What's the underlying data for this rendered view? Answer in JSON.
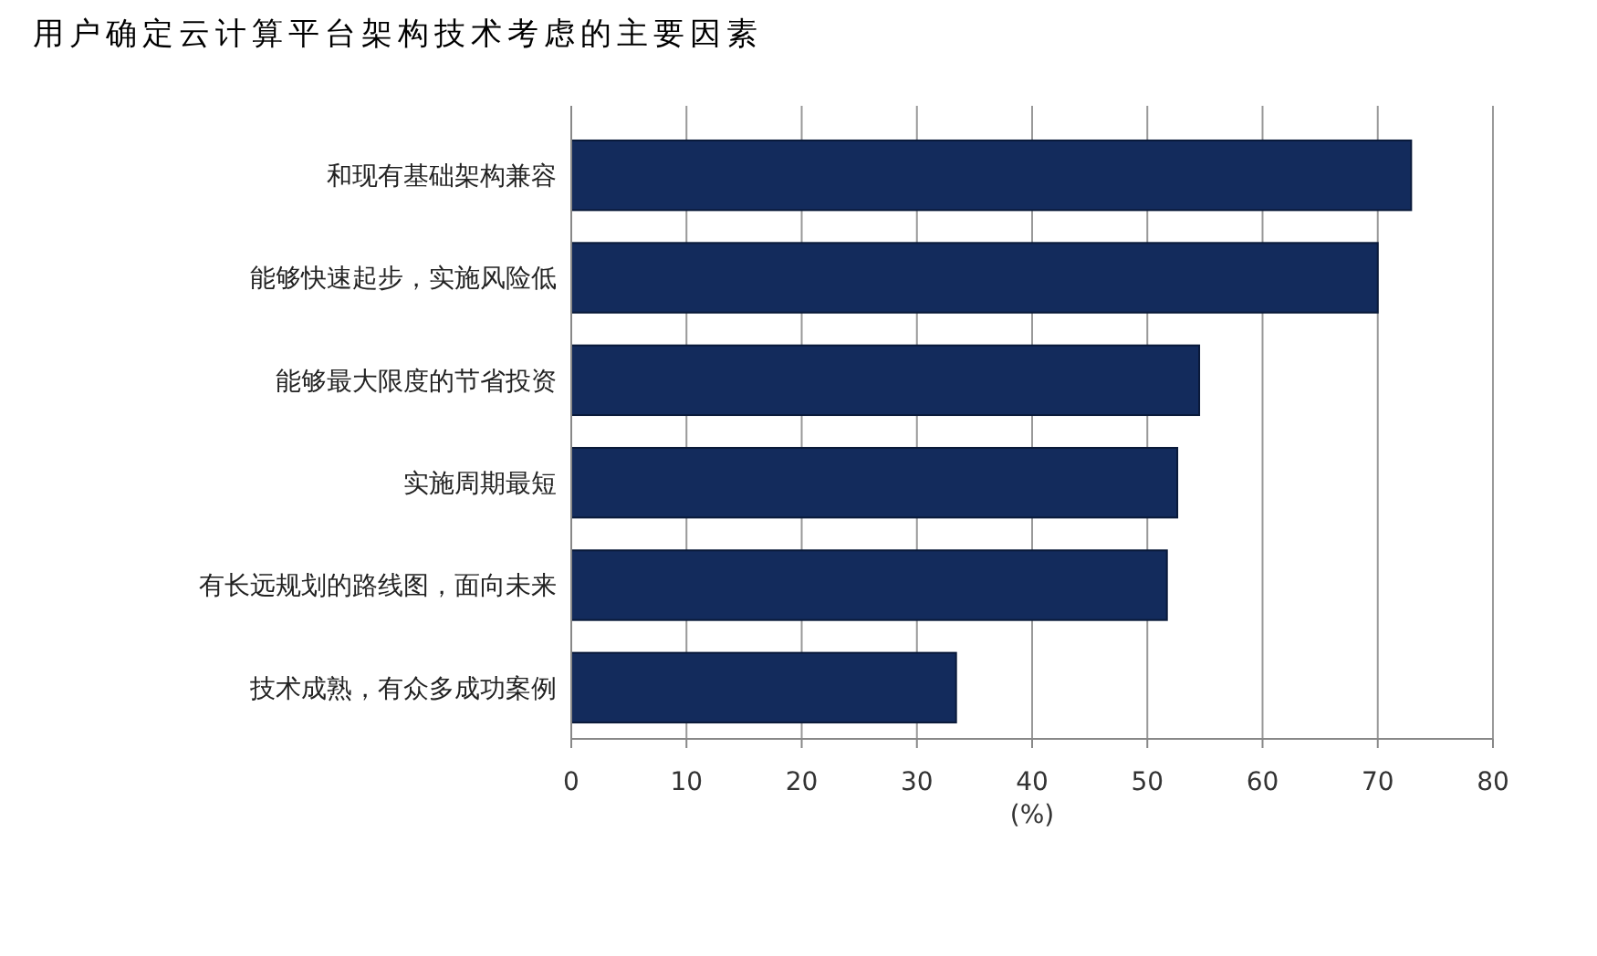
{
  "chart_data": {
    "type": "bar",
    "orientation": "horizontal",
    "title": "用户确定云计算平台架构技术考虑的主要因素",
    "xlabel": "(%)",
    "categories": [
      "和现有基础架构兼容",
      "能够快速起步，实施风险低",
      "能够最大限度的节省投资",
      "实施周期最短",
      "有长远规划的路线图，面向未来",
      "技术成熟，有众多成功案例"
    ],
    "values": [
      72.9,
      70.0,
      54.5,
      52.6,
      51.7,
      33.4
    ],
    "color": "#132b5c",
    "xlim": [
      0,
      80
    ],
    "xticks": [
      0,
      10,
      20,
      30,
      40,
      50,
      60,
      70,
      80
    ],
    "grid": "x"
  }
}
